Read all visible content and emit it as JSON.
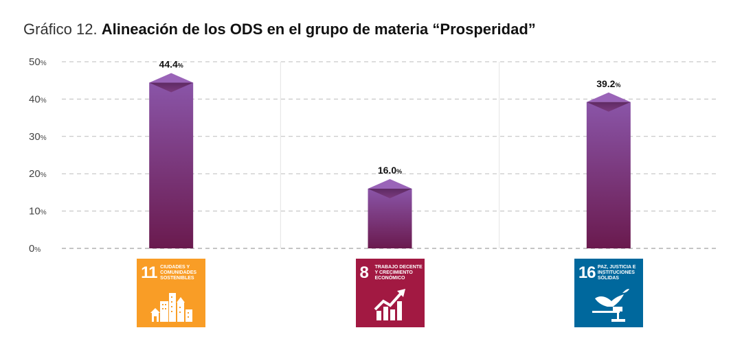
{
  "title": {
    "lead": "Gráfico 12.",
    "main": "Alineación de los ODS en el grupo de materia “Prosperidad”"
  },
  "chart_data": {
    "type": "bar",
    "categories": [
      "11",
      "8",
      "16"
    ],
    "values": [
      44.4,
      16.0,
      39.2
    ],
    "value_labels": [
      "44.4",
      "16.0",
      "39.2"
    ],
    "unit": "%",
    "ylim": [
      0,
      50
    ],
    "yticks": [
      0,
      10,
      20,
      30,
      40,
      50
    ],
    "grid": true,
    "bar_colors": {
      "top": "#8a55a8",
      "bottom": "#6a1a4e"
    }
  },
  "sdg_icons": [
    {
      "number": "11",
      "name": "CIUDADES Y COMUNIDADES SOSTENIBLES",
      "color": "#f99d26",
      "icon": "city-buildings-icon"
    },
    {
      "number": "8",
      "name": "TRABAJO DECENTE Y CRECIMIENTO ECONÓMICO",
      "color": "#a21942",
      "icon": "growth-chart-icon"
    },
    {
      "number": "16",
      "name": "PAZ, JUSTICIA E INSTITUCIONES SÓLIDAS",
      "color": "#00689d",
      "icon": "dove-gavel-icon"
    }
  ]
}
